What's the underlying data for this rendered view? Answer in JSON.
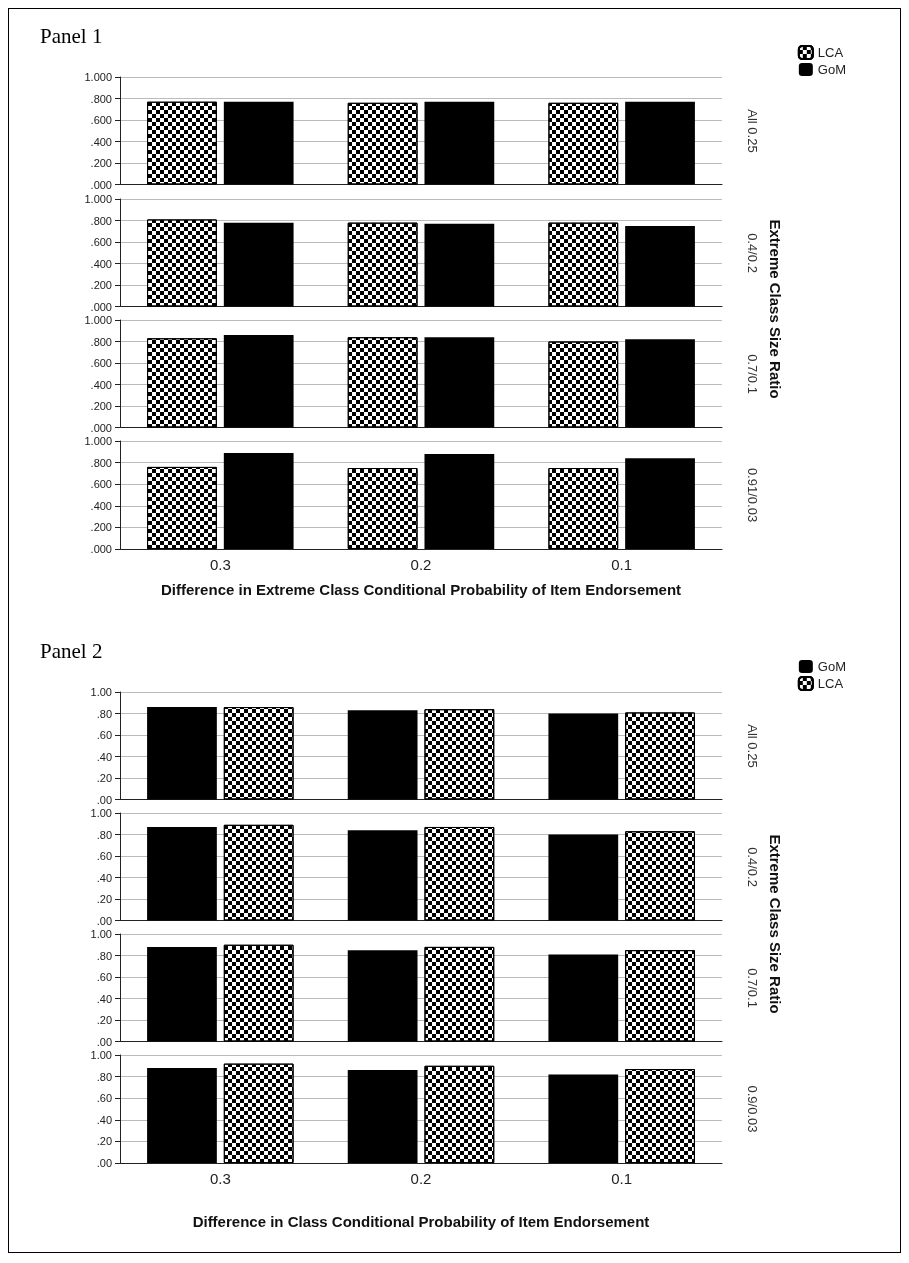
{
  "chart_data": [
    {
      "type": "bar",
      "title": "Panel 1",
      "categories": [
        "0.3",
        "0.2",
        "0.1"
      ],
      "series": [
        {
          "name": "LCA",
          "color": "#ffffff",
          "values": [
            0.77,
            0.76,
            0.76
          ]
        },
        {
          "name": "GoM",
          "color": "#000000",
          "values": [
            0.77,
            0.77,
            0.77
          ]
        }
      ],
      "ylim": [
        0,
        1
      ],
      "yticks": [
        {
          "value": 0,
          "label": ".000"
        },
        {
          "value": 0.2,
          "label": ".200"
        },
        {
          "value": 0.4,
          "label": ".400"
        },
        {
          "value": 0.6,
          "label": ".600"
        },
        {
          "value": 0.8,
          "label": ".800"
        },
        {
          "value": 1,
          "label": "1.000"
        }
      ],
      "y2label": "All 0.25",
      "annotations": [
        "Extreme Class Size Ratio"
      ],
      "legend": "top right",
      "grid": "y",
      "tick_labels": "y"
    },
    {
      "type": "bar",
      "categories": [
        "0.3",
        "0.2",
        "0.1"
      ],
      "series": [
        {
          "color": "#ffffff",
          "values": [
            0.81,
            0.78,
            0.78
          ]
        },
        {
          "color": "#000000",
          "values": [
            0.78,
            0.77,
            0.75
          ]
        }
      ],
      "ylim": [
        0,
        1
      ],
      "yticks": [
        {
          "value": 0,
          "label": ".000"
        },
        {
          "value": 0.2,
          "label": ".200"
        },
        {
          "value": 0.4,
          "label": ".400"
        },
        {
          "value": 0.6,
          "label": ".600"
        },
        {
          "value": 0.8,
          "label": ".800"
        },
        {
          "value": 1,
          "label": "1.000"
        }
      ],
      "y2label": "0.4/0.2",
      "grid": "y",
      "tick_labels": "y"
    },
    {
      "type": "bar",
      "categories": [
        "0.3",
        "0.2",
        "0.1"
      ],
      "series": [
        {
          "color": "#ffffff",
          "values": [
            0.83,
            0.84,
            0.8
          ]
        },
        {
          "color": "#000000",
          "values": [
            0.86,
            0.84,
            0.82
          ]
        }
      ],
      "ylim": [
        0,
        1
      ],
      "yticks": [
        {
          "value": 0,
          "label": ".000"
        },
        {
          "value": 0.2,
          "label": ".200"
        },
        {
          "value": 0.4,
          "label": ".400"
        },
        {
          "value": 0.6,
          "label": ".600"
        },
        {
          "value": 0.8,
          "label": ".800"
        },
        {
          "value": 1,
          "label": "1.000"
        }
      ],
      "y2label": "0.7/0.1",
      "grid": "y",
      "tick_labels": "y"
    },
    {
      "type": "bar",
      "categories": [
        "0.3",
        "0.2",
        "0.1"
      ],
      "series": [
        {
          "color": "#ffffff",
          "values": [
            0.76,
            0.75,
            0.75
          ]
        },
        {
          "color": "#000000",
          "values": [
            0.89,
            0.88,
            0.84
          ]
        }
      ],
      "ylim": [
        0,
        1
      ],
      "yticks": [
        {
          "value": 0,
          "label": ".000"
        },
        {
          "value": 0.2,
          "label": ".200"
        },
        {
          "value": 0.4,
          "label": ".400"
        },
        {
          "value": 0.6,
          "label": ".600"
        },
        {
          "value": 0.8,
          "label": ".800"
        },
        {
          "value": 1,
          "label": "1.000"
        }
      ],
      "y2label": "0.91/0.03",
      "xlabel": "Difference in Extreme Class Conditional Probability of Item Endorsement",
      "grid": "y"
    },
    {
      "type": "bar",
      "title": "Panel 2",
      "categories": [
        "0.3",
        "0.2",
        "0.1"
      ],
      "series": [
        {
          "name": "GoM",
          "color": "#000000",
          "values": [
            0.86,
            0.83,
            0.8
          ]
        },
        {
          "name": "LCA",
          "color": "#ffffff",
          "values": [
            0.86,
            0.84,
            0.81
          ]
        }
      ],
      "ylim": [
        0,
        1
      ],
      "yticks": [
        {
          "value": 0,
          "label": ".00"
        },
        {
          "value": 0.2,
          "label": ".20"
        },
        {
          "value": 0.4,
          "label": ".40"
        },
        {
          "value": 0.6,
          "label": ".60"
        },
        {
          "value": 0.8,
          "label": ".80"
        },
        {
          "value": 1,
          "label": "1.00"
        }
      ],
      "y2label": "All 0.25",
      "annotations": [
        "Extreme Class Size Ratio"
      ],
      "legend": "top right",
      "grid": "y",
      "tick_labels": "y"
    },
    {
      "type": "bar",
      "categories": [
        "0.3",
        "0.2",
        "0.1"
      ],
      "series": [
        {
          "color": "#000000",
          "values": [
            0.87,
            0.84,
            0.8
          ]
        },
        {
          "color": "#ffffff",
          "values": [
            0.89,
            0.87,
            0.83
          ]
        }
      ],
      "ylim": [
        0,
        1
      ],
      "yticks": [
        {
          "value": 0,
          "label": ".00"
        },
        {
          "value": 0.2,
          "label": ".20"
        },
        {
          "value": 0.4,
          "label": ".40"
        },
        {
          "value": 0.6,
          "label": ".60"
        },
        {
          "value": 0.8,
          "label": ".80"
        },
        {
          "value": 1,
          "label": "1.00"
        }
      ],
      "y2label": "0.4/0.2",
      "grid": "y",
      "tick_labels": "y"
    },
    {
      "type": "bar",
      "categories": [
        "0.3",
        "0.2",
        "0.1"
      ],
      "series": [
        {
          "color": "#000000",
          "values": [
            0.88,
            0.85,
            0.81
          ]
        },
        {
          "color": "#ffffff",
          "values": [
            0.9,
            0.88,
            0.85
          ]
        }
      ],
      "ylim": [
        0,
        1
      ],
      "yticks": [
        {
          "value": 0,
          "label": ".00"
        },
        {
          "value": 0.2,
          "label": ".20"
        },
        {
          "value": 0.4,
          "label": ".40"
        },
        {
          "value": 0.6,
          "label": ".60"
        },
        {
          "value": 0.8,
          "label": ".80"
        },
        {
          "value": 1,
          "label": "1.00"
        }
      ],
      "y2label": "0.7/0.1",
      "grid": "y",
      "tick_labels": "y"
    },
    {
      "type": "bar",
      "categories": [
        "0.3",
        "0.2",
        "0.1"
      ],
      "series": [
        {
          "color": "#000000",
          "values": [
            0.88,
            0.86,
            0.82
          ]
        },
        {
          "color": "#ffffff",
          "values": [
            0.92,
            0.9,
            0.87
          ]
        }
      ],
      "ylim": [
        0,
        1
      ],
      "yticks": [
        {
          "value": 0,
          "label": ".00"
        },
        {
          "value": 0.2,
          "label": ".20"
        },
        {
          "value": 0.4,
          "label": ".40"
        },
        {
          "value": 0.6,
          "label": ".60"
        },
        {
          "value": 0.8,
          "label": ".80"
        },
        {
          "value": 1,
          "label": "1.00"
        }
      ],
      "y2label": "0.9/0.03",
      "xlabel": "Difference in Class Conditional Probability of Item Endorsement",
      "grid": "y"
    }
  ]
}
